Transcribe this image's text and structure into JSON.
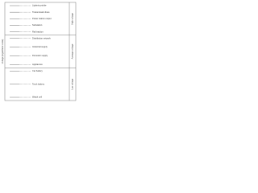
{
  "axis_label": "Voltage (logarithmic scale)",
  "sections": [
    {
      "label": "High voltage",
      "items": [
        {
          "label": "Lightning strike"
        },
        {
          "label": "Transmission lines"
        },
        {
          "label": "Power station output"
        },
        {
          "label": "Substation"
        },
        {
          "label": "Rail traction"
        }
      ]
    },
    {
      "label": "Average voltage",
      "items": [
        {
          "label": "Distribution network"
        },
        {
          "label": "Industrial supply"
        },
        {
          "label": "Domestic supply"
        },
        {
          "label": "Appliances"
        }
      ]
    },
    {
      "label": "Low voltage",
      "items": [
        {
          "label": "Car battery"
        },
        {
          "label": "Torch battery"
        },
        {
          "label": "Watch cell"
        }
      ]
    }
  ]
}
